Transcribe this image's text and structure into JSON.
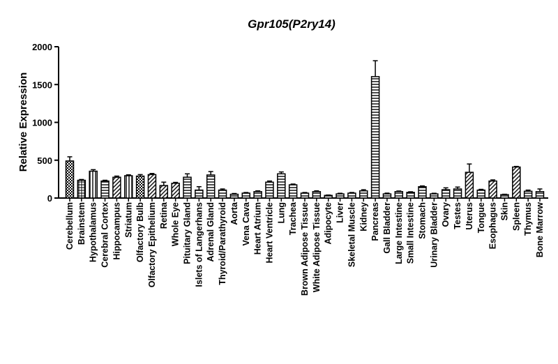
{
  "chart_data": {
    "type": "bar",
    "title": "Gpr105(P2ry14)",
    "ylabel": "Relative Expression",
    "xlabel": "",
    "ylim": [
      0,
      2000
    ],
    "yticks": [
      0,
      500,
      1000,
      1500,
      2000
    ],
    "grid": false,
    "categories": [
      "Cerebellum",
      "Brainstem",
      "Hypothalamus",
      "Cerebral Cortex",
      "Hippocampus",
      "Striatum",
      "Olfactory Bulb",
      "Olfactory Epithelium",
      "Retina",
      "Whole Eye",
      "Pituitary Gland",
      "Islets of Langerhans",
      "Adrenal Gland",
      "Thyroid/Parathyroid",
      "Aorta",
      "Vena Cava",
      "Heart Atrium",
      "Heart Ventricle",
      "Lung",
      "Trachea",
      "Brown Adipose Tissue",
      "White Adipose Tissue",
      "Adipocyte",
      "Liver",
      "Skeletal Muscle",
      "Kidney",
      "Pancreas",
      "Gall Bladder",
      "Large Intestine",
      "Small Intestine",
      "Stomach",
      "Urinary Bladder",
      "Ovary",
      "Testes",
      "Uterus",
      "Tongue",
      "Esophagus",
      "Skin",
      "Spleen",
      "Thymus",
      "Bone Marrow"
    ],
    "values": [
      490,
      235,
      355,
      225,
      275,
      295,
      290,
      310,
      165,
      195,
      275,
      105,
      305,
      105,
      50,
      65,
      85,
      210,
      320,
      175,
      65,
      85,
      35,
      55,
      65,
      95,
      1605,
      55,
      85,
      75,
      150,
      55,
      110,
      120,
      340,
      105,
      225,
      45,
      410,
      90,
      85
    ],
    "errors": [
      55,
      10,
      20,
      10,
      15,
      12,
      20,
      15,
      45,
      12,
      45,
      45,
      45,
      15,
      10,
      8,
      10,
      15,
      25,
      10,
      8,
      10,
      5,
      8,
      8,
      15,
      210,
      10,
      8,
      8,
      10,
      8,
      25,
      25,
      110,
      10,
      15,
      5,
      8,
      15,
      35
    ],
    "patterns": [
      "checker",
      "grid",
      "vlines",
      "hlines",
      "diag",
      "vlines",
      "checker",
      "diag",
      "diag",
      "diag",
      "hlines",
      "hlines",
      "hlines",
      "hlines",
      "hlines",
      "hlines",
      "hlines",
      "hlines",
      "hlines",
      "hlines",
      "hlines",
      "hlines",
      "hlines",
      "hlines",
      "hlines",
      "hlines",
      "hlines",
      "hlines",
      "hlines",
      "hlines",
      "hlines",
      "hlines",
      "hlines",
      "hlines",
      "diag",
      "hlines",
      "diag",
      "hlines",
      "diag",
      "hlines",
      "hlines"
    ]
  }
}
